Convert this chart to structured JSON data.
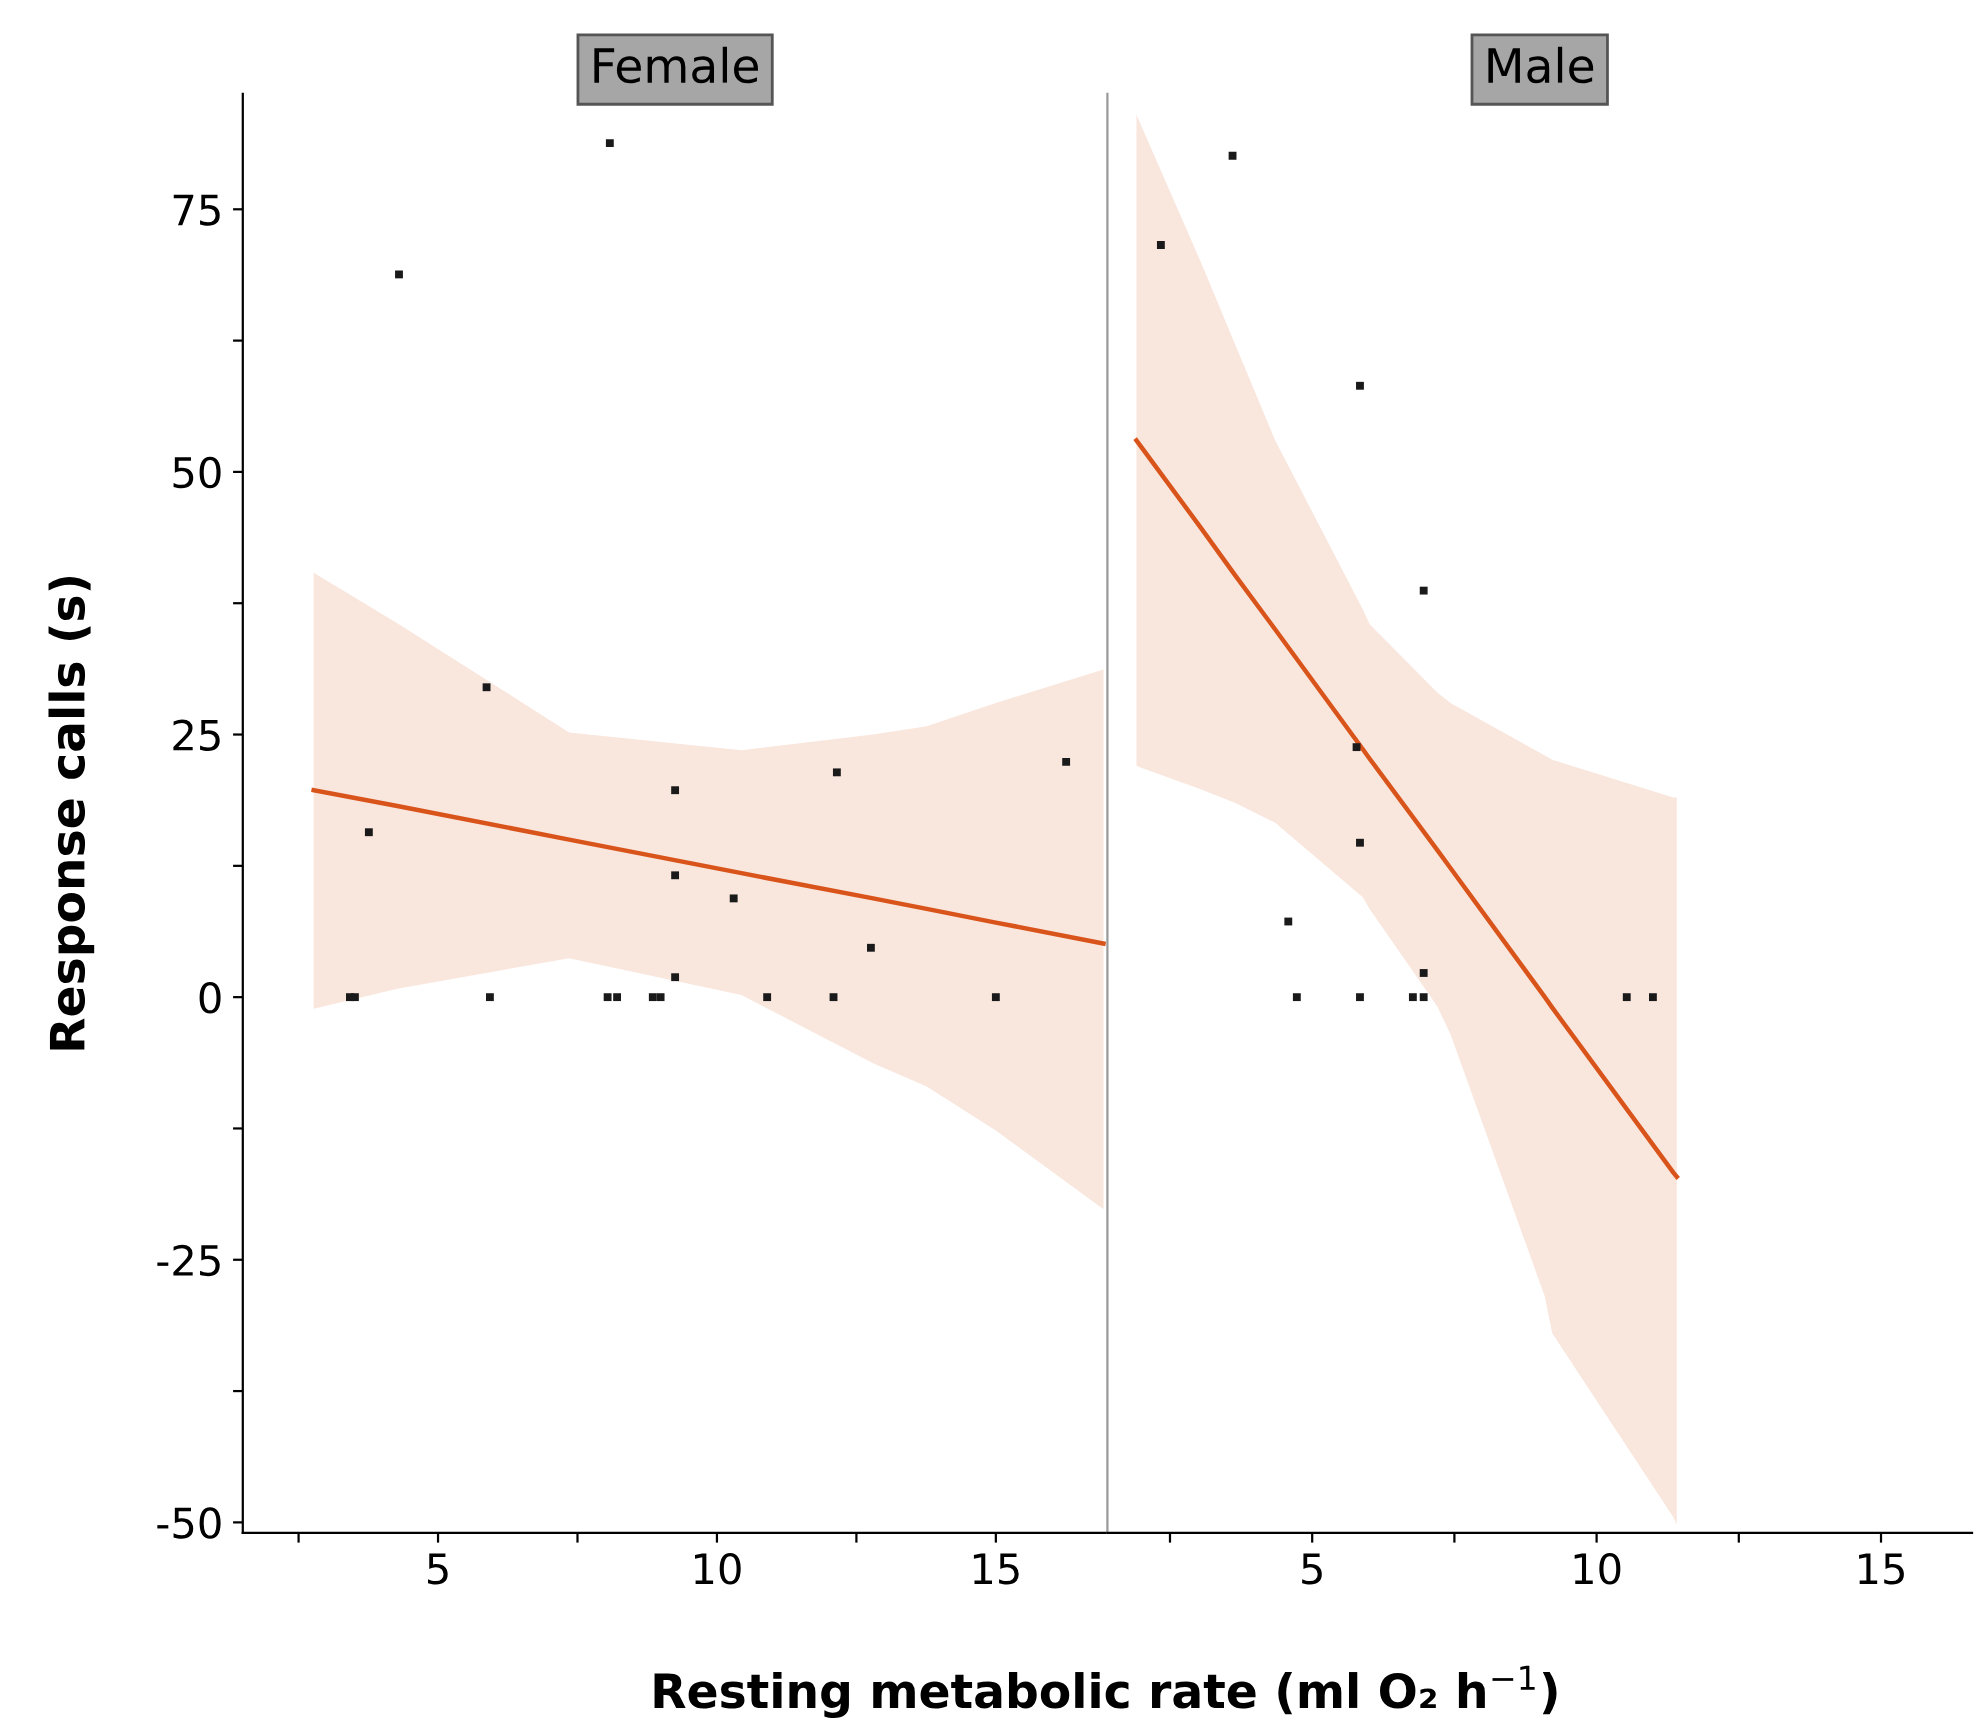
{
  "chart_data": [
    {
      "type": "scatter",
      "title": "Female",
      "ylabel": "Response calls (s)",
      "xlabel": "Resting metabolic rate (ml O₂ h$^{−1}$)",
      "xlim": [
        1.5,
        17.0
      ],
      "xticks": [
        {
          "value": 2.5,
          "label": null
        },
        5,
        {
          "value": 7.5,
          "label": null
        },
        10,
        {
          "value": 12.5,
          "label": null
        },
        15
      ],
      "ylim": [
        -51,
        86
      ],
      "yticks": [
        -50,
        {
          "value": -37.5,
          "label": null
        },
        -25,
        {
          "value": -12.5,
          "label": null
        },
        0,
        {
          "value": 12.5,
          "label": null
        },
        25,
        {
          "value": 37.5,
          "label": null
        },
        50,
        {
          "value": 62.5,
          "label": null
        },
        75
      ],
      "grid": false,
      "marker": "square",
      "series": [
        {
          "color": "#1a1a1a",
          "x": [
            8.08,
            4.3,
            5.87,
            3.76,
            9.25,
            9.25,
            10.3,
            12.15,
            12.76,
            16.26,
            9.25,
            3.42,
            3.51,
            5.93,
            8.04,
            8.21,
            8.85,
            8.99,
            10.9,
            12.09,
            15.0
          ],
          "values": [
            81.3,
            68.8,
            29.5,
            15.7,
            19.7,
            11.6,
            9.4,
            21.4,
            4.7,
            22.4,
            1.9,
            0,
            0,
            0,
            0,
            0,
            0,
            0,
            0,
            0,
            0
          ]
        },
        {
          "type": "line",
          "marker": "none",
          "color": "#d9541a",
          "x": [
            2.77,
            4.27,
            7.35,
            10.44,
            12.8,
            13.76,
            15.0,
            16.93
          ],
          "values": [
            19.7,
            18.2,
            15.0,
            11.8,
            9.4,
            8.4,
            7.1,
            5.1
          ],
          "lower": [
            -1.1,
            0.8,
            3.7,
            0.2,
            -6.3,
            -8.5,
            -12.7,
            -20.2
          ],
          "upper": [
            40.4,
            35.6,
            25.2,
            23.5,
            25.0,
            25.8,
            28.0,
            31.2
          ]
        }
      ]
    },
    {
      "type": "scatter",
      "title": "Male",
      "tick_labels": "x",
      "xlim": [
        1.4,
        16.6
      ],
      "xticks": [
        {
          "value": 2.5,
          "label": null
        },
        5,
        {
          "value": 7.5,
          "label": null
        },
        10,
        {
          "value": 12.5,
          "label": null
        },
        15
      ],
      "ylim": [
        -51,
        86
      ],
      "grid": false,
      "marker": "square",
      "series": [
        {
          "color": "#1a1a1a",
          "x": [
            3.6,
            2.34,
            5.84,
            6.96,
            5.78,
            5.84,
            4.58,
            6.96,
            4.73,
            5.84,
            6.77,
            6.96,
            10.53,
            10.99
          ],
          "values": [
            80.1,
            71.6,
            58.2,
            38.7,
            23.8,
            14.7,
            7.2,
            2.3,
            0,
            0,
            0,
            0,
            0,
            0
          ]
        },
        {
          "type": "line",
          "marker": "none",
          "color": "#d9541a",
          "x": [
            1.91,
            3.04,
            3.64,
            4.35,
            5.89,
            6.01,
            7.2,
            7.43,
            9.09,
            9.22,
            11.35,
            11.41
          ],
          "values": [
            53.0,
            44.7,
            40.2,
            35.0,
            23.6,
            22.7,
            14.0,
            12.3,
            0.0,
            -1.0,
            -16.7,
            -17.1
          ],
          "lower": [
            22.0,
            19.8,
            18.5,
            16.6,
            9.5,
            8.4,
            -0.9,
            -3.5,
            -28.5,
            -32.0,
            -49.5,
            -50.2
          ],
          "upper": [
            84.0,
            70.0,
            62.2,
            53.0,
            36.9,
            35.5,
            29.0,
            28.0,
            23.0,
            22.6,
            19.0,
            19.0
          ]
        }
      ]
    }
  ]
}
